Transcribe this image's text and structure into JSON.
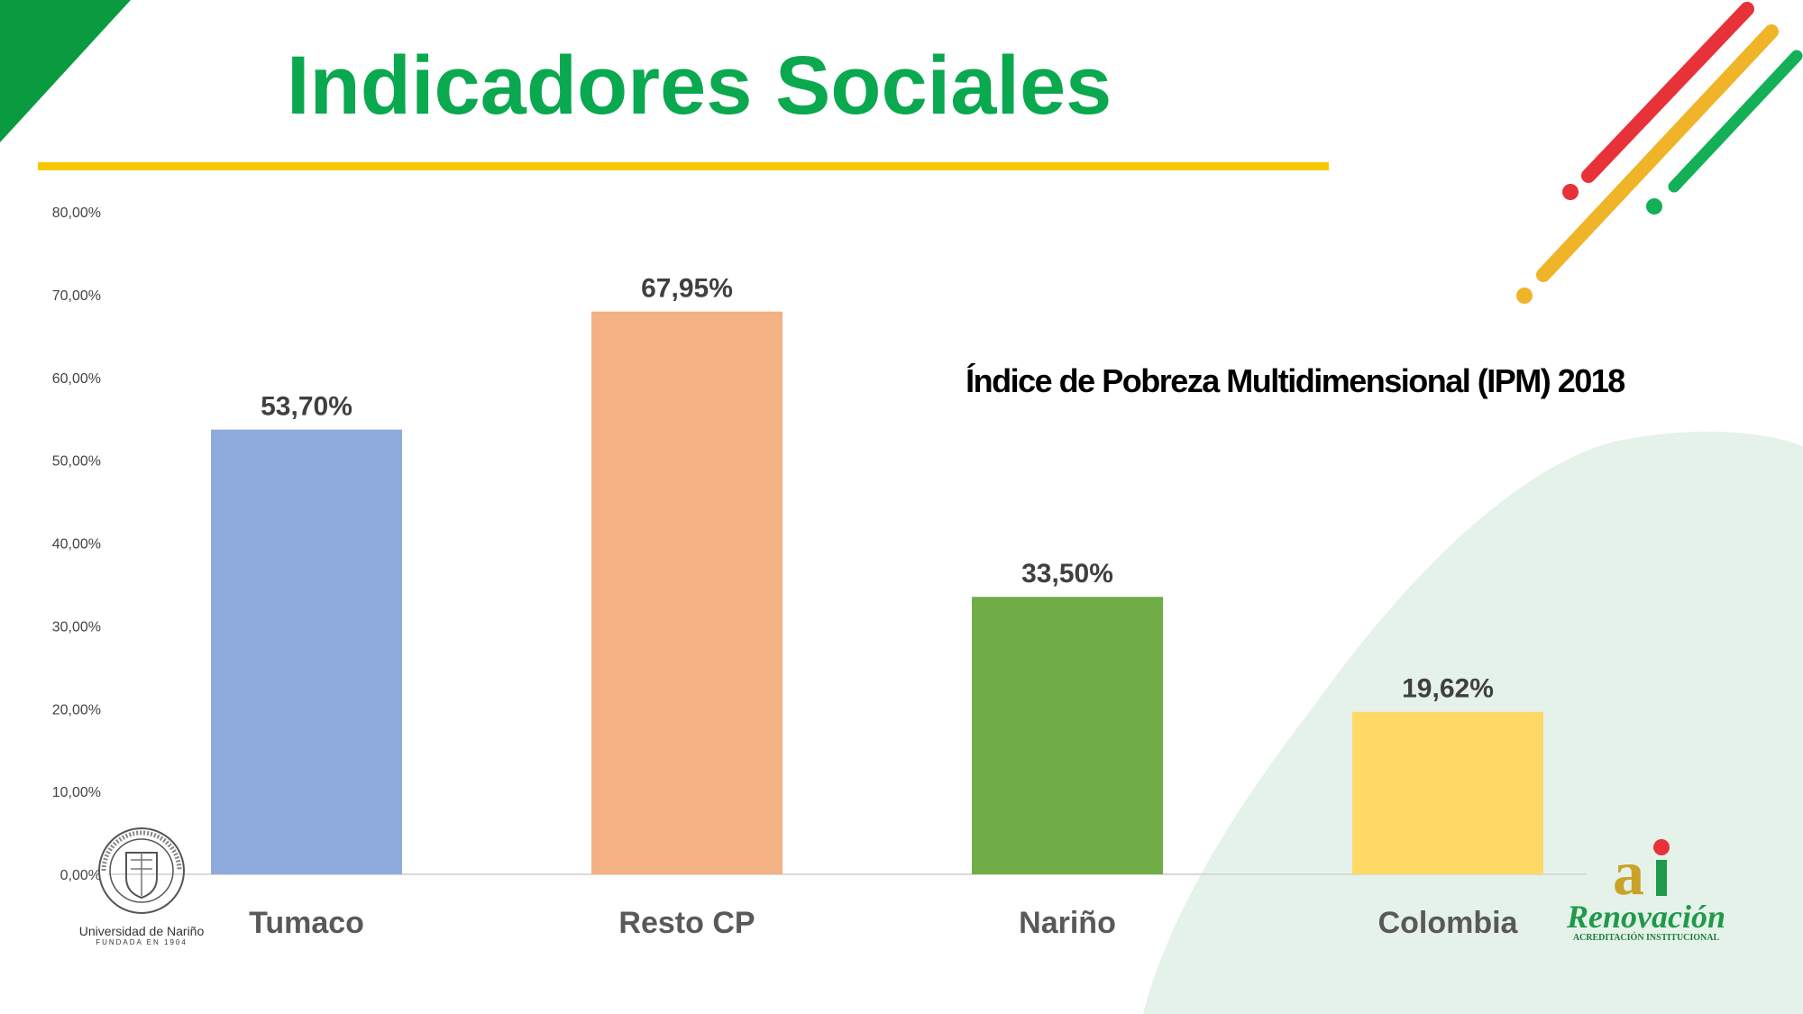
{
  "header": {
    "title": "Indicadores Sociales"
  },
  "colors": {
    "title_green": "#0aa84f",
    "rule_yellow": "#f6c800",
    "corner_green": "#0a9a3f",
    "stripe_red": "#e8323a",
    "stripe_yellow": "#f0b429",
    "stripe_green": "#13b057",
    "background_blob": "#e4f2ea"
  },
  "chart_data": {
    "type": "bar",
    "title": "Índice de Pobreza Multidimensional (IPM) 2018",
    "categories": [
      "Tumaco",
      "Resto CP",
      "Nariño",
      "Colombia"
    ],
    "values": [
      53.7,
      67.95,
      33.5,
      19.62
    ],
    "data_labels": [
      "53,70%",
      "67,95%",
      "33,50%",
      "19,62%"
    ],
    "bar_colors": [
      "#8faadc",
      "#f4b183",
      "#70ad47",
      "#ffd966"
    ],
    "ylim": [
      0,
      80
    ],
    "yticks": [
      0,
      10,
      20,
      30,
      40,
      50,
      60,
      70,
      80
    ],
    "ytick_labels": [
      "0,00%",
      "10,00%",
      "20,00%",
      "30,00%",
      "40,00%",
      "50,00%",
      "60,00%",
      "70,00%",
      "80,00%"
    ],
    "grid": false,
    "legend": "none"
  },
  "logos": {
    "left": {
      "name": "Universidad de Nariño",
      "sub": "FUNDADA EN 1904",
      "seal_text": "POST TENEBRAS SPERO LUCEM"
    },
    "right": {
      "mark": "ai",
      "name": "Renovación",
      "sub": "ACREDITACIÓN INSTITUCIONAL"
    }
  }
}
